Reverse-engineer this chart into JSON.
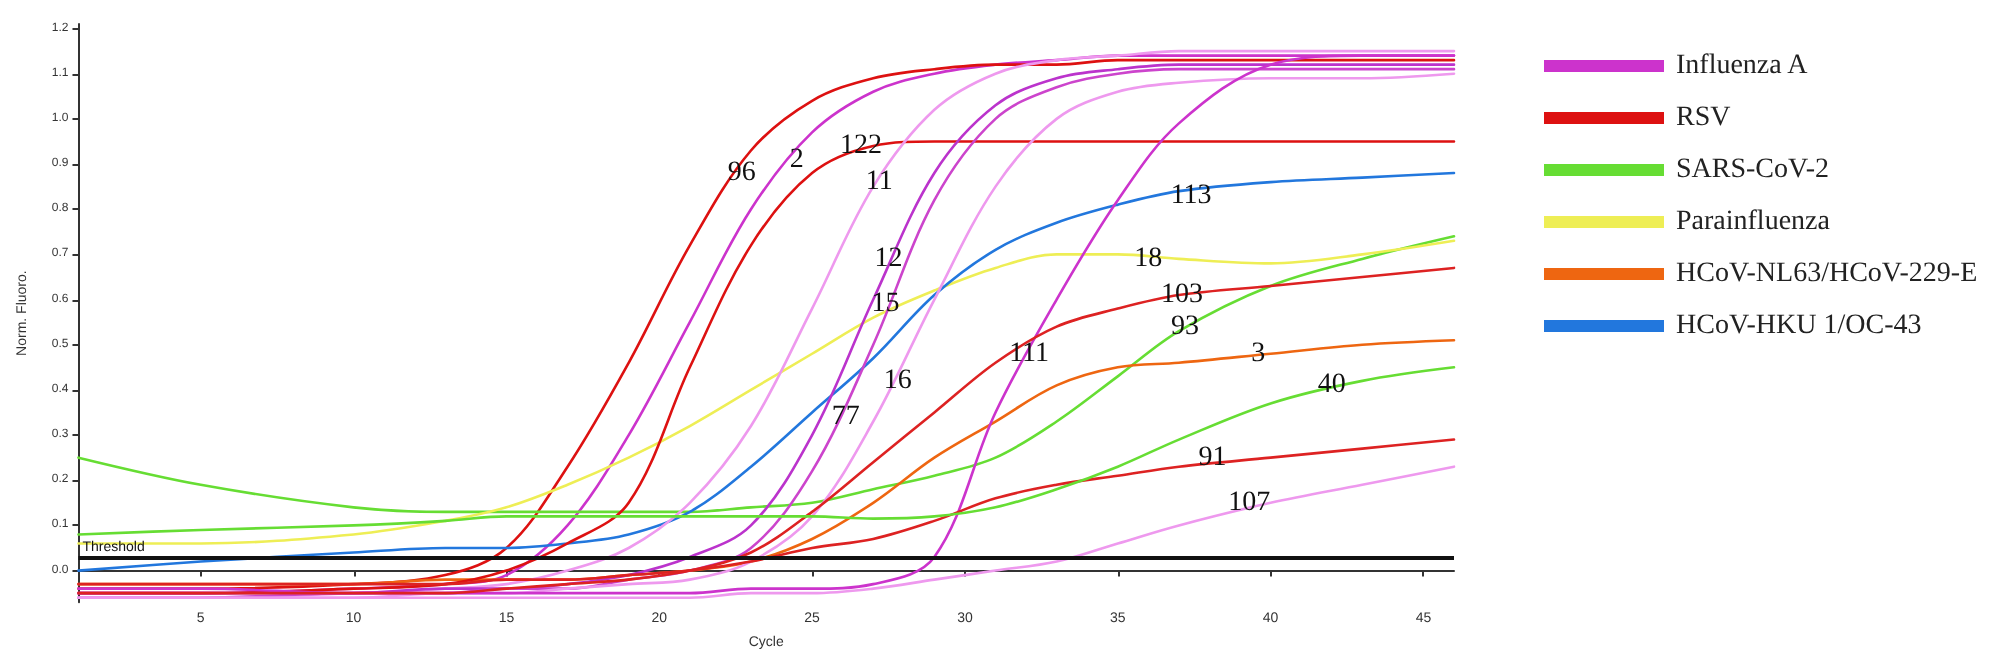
{
  "chart_data": {
    "type": "line",
    "xlabel": "Cycle",
    "ylabel": "Norm. Fluoro.",
    "x": [
      1,
      5,
      10,
      13,
      15,
      17,
      19,
      21,
      23,
      25,
      27,
      29,
      31,
      33,
      35,
      37,
      40,
      43,
      46
    ],
    "series": [
      {
        "name": "Influenza A",
        "color": "#cc33cc",
        "values": [
          -0.05,
          -0.05,
          -0.04,
          -0.03,
          -0.01,
          0.1,
          0.3,
          0.55,
          0.8,
          0.97,
          1.06,
          1.1,
          1.12,
          1.13,
          1.14,
          1.14,
          1.14,
          1.14,
          1.14
        ]
      },
      {
        "name": "RSV",
        "color": "#dd1111",
        "values": [
          -0.04,
          -0.04,
          -0.03,
          -0.01,
          0.05,
          0.23,
          0.46,
          0.72,
          0.93,
          1.04,
          1.09,
          1.11,
          1.12,
          1.12,
          1.13,
          1.13,
          1.13,
          1.13,
          1.13
        ]
      },
      {
        "name": "SARS-CoV-2",
        "color": "#66dd33",
        "values": [
          0.25,
          0.19,
          0.14,
          0.13,
          0.13,
          0.13,
          0.13,
          0.13,
          0.14,
          0.15,
          0.18,
          0.21,
          0.25,
          0.33,
          0.43,
          0.53,
          0.63,
          0.69,
          0.74
        ]
      },
      {
        "name": "Parainfluenza",
        "color": "#eeee55",
        "values": [
          0.06,
          0.06,
          0.08,
          0.11,
          0.14,
          0.19,
          0.25,
          0.32,
          0.4,
          0.48,
          0.56,
          0.62,
          0.67,
          0.7,
          0.7,
          0.69,
          0.68,
          0.7,
          0.73
        ]
      },
      {
        "name": "HCoV-NL63/HCoV-229-E",
        "color": "#ee6611",
        "values": [
          -0.03,
          -0.03,
          -0.03,
          -0.02,
          -0.02,
          -0.02,
          -0.01,
          0.0,
          0.02,
          0.07,
          0.15,
          0.25,
          0.33,
          0.41,
          0.45,
          0.46,
          0.48,
          0.5,
          0.51
        ]
      },
      {
        "name": "HCoV-HKU 1/OC-43",
        "color": "#2277dd",
        "values": [
          0.0,
          0.02,
          0.04,
          0.05,
          0.05,
          0.06,
          0.08,
          0.13,
          0.23,
          0.35,
          0.47,
          0.61,
          0.71,
          0.77,
          0.81,
          0.84,
          0.86,
          0.87,
          0.88
        ]
      },
      {
        "color": "#dd1111",
        "values": [
          -0.05,
          -0.05,
          -0.04,
          -0.03,
          0.0,
          0.06,
          0.15,
          0.45,
          0.72,
          0.88,
          0.94,
          0.95,
          0.95,
          0.95,
          0.95,
          0.95,
          0.95,
          0.95,
          0.95
        ]
      },
      {
        "color": "#ee99ee",
        "values": [
          -0.06,
          -0.06,
          -0.05,
          -0.04,
          -0.03,
          0.0,
          0.05,
          0.15,
          0.32,
          0.58,
          0.85,
          1.02,
          1.1,
          1.13,
          1.14,
          1.15,
          1.15,
          1.15,
          1.15
        ]
      },
      {
        "color": "#bb33cc",
        "values": [
          -0.05,
          -0.05,
          -0.05,
          -0.04,
          -0.04,
          -0.03,
          -0.01,
          0.03,
          0.1,
          0.3,
          0.6,
          0.88,
          1.03,
          1.09,
          1.11,
          1.12,
          1.12,
          1.12,
          1.12
        ]
      },
      {
        "color": "#cc44cc",
        "values": [
          -0.06,
          -0.06,
          -0.05,
          -0.05,
          -0.04,
          -0.04,
          -0.02,
          0.0,
          0.05,
          0.22,
          0.5,
          0.82,
          1.0,
          1.07,
          1.1,
          1.11,
          1.11,
          1.11,
          1.11
        ]
      },
      {
        "color": "#ee99ee",
        "values": [
          -0.06,
          -0.06,
          -0.06,
          -0.05,
          -0.05,
          -0.04,
          -0.03,
          -0.02,
          0.02,
          0.12,
          0.33,
          0.6,
          0.85,
          1.0,
          1.06,
          1.08,
          1.09,
          1.09,
          1.1
        ]
      },
      {
        "color": "#cc33cc",
        "values": [
          -0.04,
          -0.04,
          -0.05,
          -0.05,
          -0.05,
          -0.05,
          -0.05,
          -0.05,
          -0.04,
          -0.04,
          -0.03,
          0.03,
          0.35,
          0.6,
          0.82,
          0.99,
          1.12,
          1.14,
          1.14
        ]
      },
      {
        "color": "#ee99ee",
        "values": [
          -0.06,
          -0.06,
          -0.06,
          -0.06,
          -0.06,
          -0.06,
          -0.06,
          -0.06,
          -0.05,
          -0.05,
          -0.04,
          -0.02,
          0.0,
          0.02,
          0.06,
          0.1,
          0.15,
          0.19,
          0.23
        ]
      },
      {
        "color": "#dd2222",
        "values": [
          -0.05,
          -0.05,
          -0.05,
          -0.05,
          -0.04,
          -0.03,
          -0.02,
          0.0,
          0.04,
          0.13,
          0.24,
          0.35,
          0.46,
          0.54,
          0.58,
          0.61,
          0.63,
          0.65,
          0.67
        ]
      },
      {
        "color": "#dd2222",
        "values": [
          -0.03,
          -0.03,
          -0.03,
          -0.03,
          -0.02,
          -0.02,
          -0.01,
          0.0,
          0.02,
          0.05,
          0.07,
          0.11,
          0.16,
          0.19,
          0.21,
          0.23,
          0.25,
          0.27,
          0.29
        ]
      },
      {
        "color": "#66dd33",
        "values": [
          0.08,
          0.09,
          0.1,
          0.11,
          0.12,
          0.12,
          0.12,
          0.12,
          0.12,
          0.12,
          0.115,
          0.12,
          0.14,
          0.18,
          0.23,
          0.29,
          0.37,
          0.42,
          0.45
        ]
      }
    ],
    "xlim": [
      1,
      46
    ],
    "xticks": [
      5,
      10,
      15,
      20,
      25,
      30,
      35,
      40,
      45
    ],
    "ylim": [
      -0.07,
      1.21
    ],
    "yticks": [
      {
        "value": 0,
        "label": "0.0"
      },
      0.1,
      0.2,
      0.3,
      0.4,
      0.5,
      0.6,
      0.7,
      0.8,
      0.9,
      {
        "value": 1,
        "label": "1.0"
      },
      1.1,
      1.2
    ],
    "ref_lines": [
      {
        "axis": "y",
        "value": 0.03,
        "label": "Threshold",
        "color": "#111111"
      }
    ],
    "annotations": [
      {
        "text": "96",
        "x": 22.7,
        "y": 0.88
      },
      {
        "text": "2",
        "x": 24.5,
        "y": 0.91
      },
      {
        "text": "122",
        "x": 26.6,
        "y": 0.94
      },
      {
        "text": "11",
        "x": 27.2,
        "y": 0.86
      },
      {
        "text": "12",
        "x": 27.5,
        "y": 0.69
      },
      {
        "text": "15",
        "x": 27.4,
        "y": 0.59
      },
      {
        "text": "16",
        "x": 27.8,
        "y": 0.42
      },
      {
        "text": "77",
        "x": 26.1,
        "y": 0.34
      },
      {
        "text": "111",
        "x": 32.1,
        "y": 0.48
      },
      {
        "text": "113",
        "x": 37.4,
        "y": 0.83
      },
      {
        "text": "18",
        "x": 36,
        "y": 0.69
      },
      {
        "text": "103",
        "x": 37.1,
        "y": 0.61
      },
      {
        "text": "93",
        "x": 37.2,
        "y": 0.54
      },
      {
        "text": "3",
        "x": 39.6,
        "y": 0.48
      },
      {
        "text": "40",
        "x": 42,
        "y": 0.41
      },
      {
        "text": "91",
        "x": 38.1,
        "y": 0.25
      },
      {
        "text": "107",
        "x": 39.3,
        "y": 0.15
      }
    ],
    "legend": "right",
    "marker": "none",
    "line_style": "solid"
  }
}
